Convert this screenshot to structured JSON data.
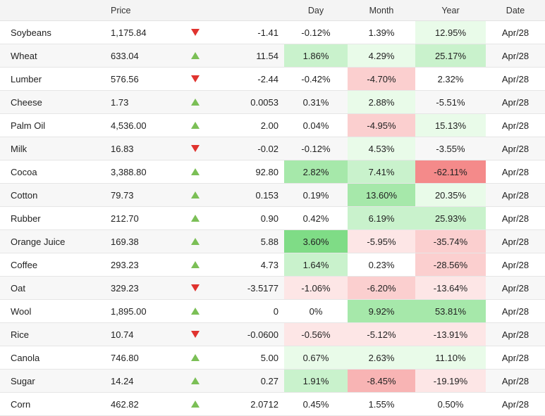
{
  "header": {
    "name": "",
    "price": "Price",
    "arrow": "",
    "change": "",
    "day": "Day",
    "month": "Month",
    "year": "Year",
    "date": "Date"
  },
  "heat": {
    "pos1": "#e9fbe9",
    "pos2": "#c9f2cc",
    "pos3": "#a6e8aa",
    "pos4": "#7fdc86",
    "neg1": "#fde6e6",
    "neg2": "#fbcfcf",
    "neg3": "#f8b4b4",
    "neg4": "#f48a8a"
  },
  "rows": [
    {
      "name": "Soybeans",
      "price": "1,175.84",
      "dir": "down",
      "change": "-1.41",
      "day": "-0.12%",
      "month": "1.39%",
      "year": "12.95%",
      "date": "Apr/28",
      "day_heat": "",
      "month_heat": "",
      "year_heat": "pos1"
    },
    {
      "name": "Wheat",
      "price": "633.04",
      "dir": "up",
      "change": "11.54",
      "day": "1.86%",
      "month": "4.29%",
      "year": "25.17%",
      "date": "Apr/28",
      "day_heat": "pos2",
      "month_heat": "pos1",
      "year_heat": "pos2"
    },
    {
      "name": "Lumber",
      "price": "576.56",
      "dir": "down",
      "change": "-2.44",
      "day": "-0.42%",
      "month": "-4.70%",
      "year": "2.32%",
      "date": "Apr/28",
      "day_heat": "",
      "month_heat": "neg2",
      "year_heat": ""
    },
    {
      "name": "Cheese",
      "price": "1.73",
      "dir": "up",
      "change": "0.0053",
      "day": "0.31%",
      "month": "2.88%",
      "year": "-5.51%",
      "date": "Apr/28",
      "day_heat": "",
      "month_heat": "pos1",
      "year_heat": ""
    },
    {
      "name": "Palm Oil",
      "price": "4,536.00",
      "dir": "up",
      "change": "2.00",
      "day": "0.04%",
      "month": "-4.95%",
      "year": "15.13%",
      "date": "Apr/28",
      "day_heat": "",
      "month_heat": "neg2",
      "year_heat": "pos1"
    },
    {
      "name": "Milk",
      "price": "16.83",
      "dir": "down",
      "change": "-0.02",
      "day": "-0.12%",
      "month": "4.53%",
      "year": "-3.55%",
      "date": "Apr/28",
      "day_heat": "",
      "month_heat": "pos1",
      "year_heat": ""
    },
    {
      "name": "Cocoa",
      "price": "3,388.80",
      "dir": "up",
      "change": "92.80",
      "day": "2.82%",
      "month": "7.41%",
      "year": "-62.11%",
      "date": "Apr/28",
      "day_heat": "pos3",
      "month_heat": "pos2",
      "year_heat": "neg4"
    },
    {
      "name": "Cotton",
      "price": "79.73",
      "dir": "up",
      "change": "0.153",
      "day": "0.19%",
      "month": "13.60%",
      "year": "20.35%",
      "date": "Apr/28",
      "day_heat": "",
      "month_heat": "pos3",
      "year_heat": "pos1"
    },
    {
      "name": "Rubber",
      "price": "212.70",
      "dir": "up",
      "change": "0.90",
      "day": "0.42%",
      "month": "6.19%",
      "year": "25.93%",
      "date": "Apr/28",
      "day_heat": "",
      "month_heat": "pos2",
      "year_heat": "pos2"
    },
    {
      "name": "Orange Juice",
      "price": "169.38",
      "dir": "up",
      "change": "5.88",
      "day": "3.60%",
      "month": "-5.95%",
      "year": "-35.74%",
      "date": "Apr/28",
      "day_heat": "pos4",
      "month_heat": "neg1",
      "year_heat": "neg2"
    },
    {
      "name": "Coffee",
      "price": "293.23",
      "dir": "up",
      "change": "4.73",
      "day": "1.64%",
      "month": "0.23%",
      "year": "-28.56%",
      "date": "Apr/28",
      "day_heat": "pos2",
      "month_heat": "",
      "year_heat": "neg2"
    },
    {
      "name": "Oat",
      "price": "329.23",
      "dir": "down",
      "change": "-3.5177",
      "day": "-1.06%",
      "month": "-6.20%",
      "year": "-13.64%",
      "date": "Apr/28",
      "day_heat": "neg1",
      "month_heat": "neg2",
      "year_heat": "neg1"
    },
    {
      "name": "Wool",
      "price": "1,895.00",
      "dir": "up",
      "change": "0",
      "day": "0%",
      "month": "9.92%",
      "year": "53.81%",
      "date": "Apr/28",
      "day_heat": "",
      "month_heat": "pos3",
      "year_heat": "pos3"
    },
    {
      "name": "Rice",
      "price": "10.74",
      "dir": "down",
      "change": "-0.0600",
      "day": "-0.56%",
      "month": "-5.12%",
      "year": "-13.91%",
      "date": "Apr/28",
      "day_heat": "neg1",
      "month_heat": "neg1",
      "year_heat": "neg1"
    },
    {
      "name": "Canola",
      "price": "746.80",
      "dir": "up",
      "change": "5.00",
      "day": "0.67%",
      "month": "2.63%",
      "year": "11.10%",
      "date": "Apr/28",
      "day_heat": "pos1",
      "month_heat": "pos1",
      "year_heat": "pos1"
    },
    {
      "name": "Sugar",
      "price": "14.24",
      "dir": "up",
      "change": "0.27",
      "day": "1.91%",
      "month": "-8.45%",
      "year": "-19.19%",
      "date": "Apr/28",
      "day_heat": "pos2",
      "month_heat": "neg3",
      "year_heat": "neg1"
    },
    {
      "name": "Corn",
      "price": "462.82",
      "dir": "up",
      "change": "2.0712",
      "day": "0.45%",
      "month": "1.55%",
      "year": "0.50%",
      "date": "Apr/28",
      "day_heat": "",
      "month_heat": "",
      "year_heat": ""
    }
  ]
}
